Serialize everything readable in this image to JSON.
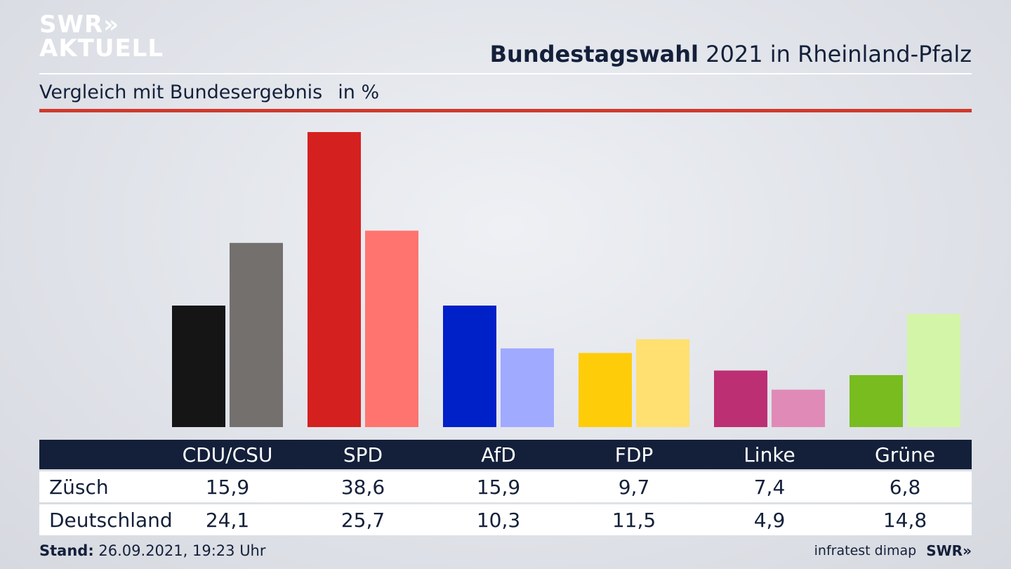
{
  "header": {
    "logo_line1": "SWR»",
    "logo_line2": "AKTUELL",
    "title_bold": "Bundestagswahl",
    "title_rest": " 2021 in Rheinland-Pfalz",
    "subtitle": "Vergleich mit Bundesergebnis",
    "unit": "in %"
  },
  "chart_data": {
    "type": "bar",
    "title": "Bundestagswahl 2021 in Rheinland-Pfalz",
    "subtitle": "Vergleich mit Bundesergebnis in %",
    "categories": [
      "CDU/CSU",
      "SPD",
      "AfD",
      "FDP",
      "Linke",
      "Grüne"
    ],
    "series": [
      {
        "name": "Züsch",
        "values": [
          15.9,
          38.6,
          15.9,
          9.7,
          7.4,
          6.8
        ],
        "display": [
          "15,9",
          "38,6",
          "15,9",
          "9,7",
          "7,4",
          "6,8"
        ]
      },
      {
        "name": "Deutschland",
        "values": [
          24.1,
          25.7,
          10.3,
          11.5,
          4.9,
          14.8
        ],
        "display": [
          "24,1",
          "25,7",
          "10,3",
          "11,5",
          "4,9",
          "14,8"
        ]
      }
    ],
    "colors": {
      "primary": [
        "#151515",
        "#d52020",
        "#0020c8",
        "#ffcc0a",
        "#bc2f73",
        "#78bc1f"
      ],
      "secondary": [
        "#73706e",
        "#ff746e",
        "#a0aaff",
        "#ffe070",
        "#e08ab8",
        "#d3f5a8"
      ]
    },
    "ylim": [
      0,
      40
    ],
    "grid": false,
    "legend": "table-below"
  },
  "footer": {
    "stand_label": "Stand:",
    "stand_value": "26.09.2021, 19:23 Uhr",
    "source": "infratest dimap",
    "brand": "SWR»"
  }
}
